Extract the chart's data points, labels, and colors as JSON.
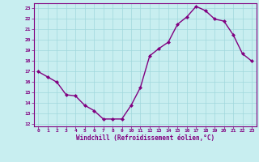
{
  "x": [
    0,
    1,
    2,
    3,
    4,
    5,
    6,
    7,
    8,
    9,
    10,
    11,
    12,
    13,
    14,
    15,
    16,
    17,
    18,
    19,
    20,
    21,
    22,
    23
  ],
  "y": [
    17.0,
    16.5,
    16.0,
    14.8,
    14.7,
    13.8,
    13.3,
    12.5,
    12.5,
    12.5,
    13.8,
    15.5,
    18.5,
    19.2,
    19.8,
    21.5,
    22.2,
    23.2,
    22.8,
    22.0,
    21.8,
    20.5,
    18.7,
    18.0
  ],
  "xlim": [
    -0.5,
    23.5
  ],
  "ylim": [
    11.8,
    23.5
  ],
  "yticks": [
    12,
    13,
    14,
    15,
    16,
    17,
    18,
    19,
    20,
    21,
    22,
    23
  ],
  "xticks": [
    0,
    1,
    2,
    3,
    4,
    5,
    6,
    7,
    8,
    9,
    10,
    11,
    12,
    13,
    14,
    15,
    16,
    17,
    18,
    19,
    20,
    21,
    22,
    23
  ],
  "line_color": "#800080",
  "marker_color": "#800080",
  "bg_color": "#c8eef0",
  "grid_color": "#a0d8dc",
  "xlabel": "Windchill (Refroidissement éolien,°C)",
  "xlabel_color": "#800080",
  "tick_color": "#800080",
  "spine_color": "#800080"
}
